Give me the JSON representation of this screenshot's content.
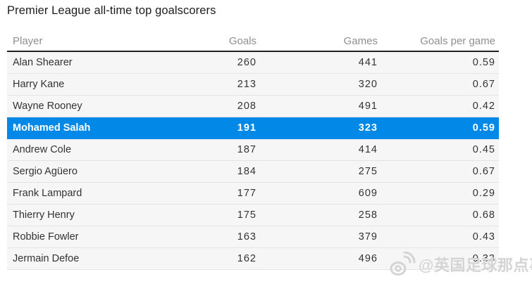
{
  "title": "Premier League all-time top goalscorers",
  "chart_data": {
    "type": "table",
    "title": "Premier League all-time top goalscorers",
    "columns": [
      "Player",
      "Goals",
      "Games",
      "Goals per game"
    ],
    "rows": [
      [
        "Alan Shearer",
        "260",
        "441",
        "0.59"
      ],
      [
        "Harry Kane",
        "213",
        "320",
        "0.67"
      ],
      [
        "Wayne Rooney",
        "208",
        "491",
        "0.42"
      ],
      [
        "Mohamed Salah",
        "191",
        "323",
        "0.59"
      ],
      [
        "Andrew Cole",
        "187",
        "414",
        "0.45"
      ],
      [
        "Sergio Agüero",
        "184",
        "275",
        "0.67"
      ],
      [
        "Frank Lampard",
        "177",
        "609",
        "0.29"
      ],
      [
        "Thierry Henry",
        "175",
        "258",
        "0.68"
      ],
      [
        "Robbie Fowler",
        "163",
        "379",
        "0.43"
      ],
      [
        "Jermain Defoe",
        "162",
        "496",
        "0.33"
      ]
    ],
    "highlighted_row_index": 3,
    "highlighted_player": "Mohamed Salah"
  },
  "watermark": {
    "text": "@英国足球那点事",
    "icon": "weibo-icon"
  },
  "colors": {
    "highlight": "#0289e8",
    "row_bg": "#f6f6f6",
    "row_border": "#e4e4e4",
    "header_rule": "#222222",
    "header_text": "#8f8f8f",
    "text": "#333333",
    "title": "#1d1d1d",
    "watermark": "#d4d4d4"
  }
}
